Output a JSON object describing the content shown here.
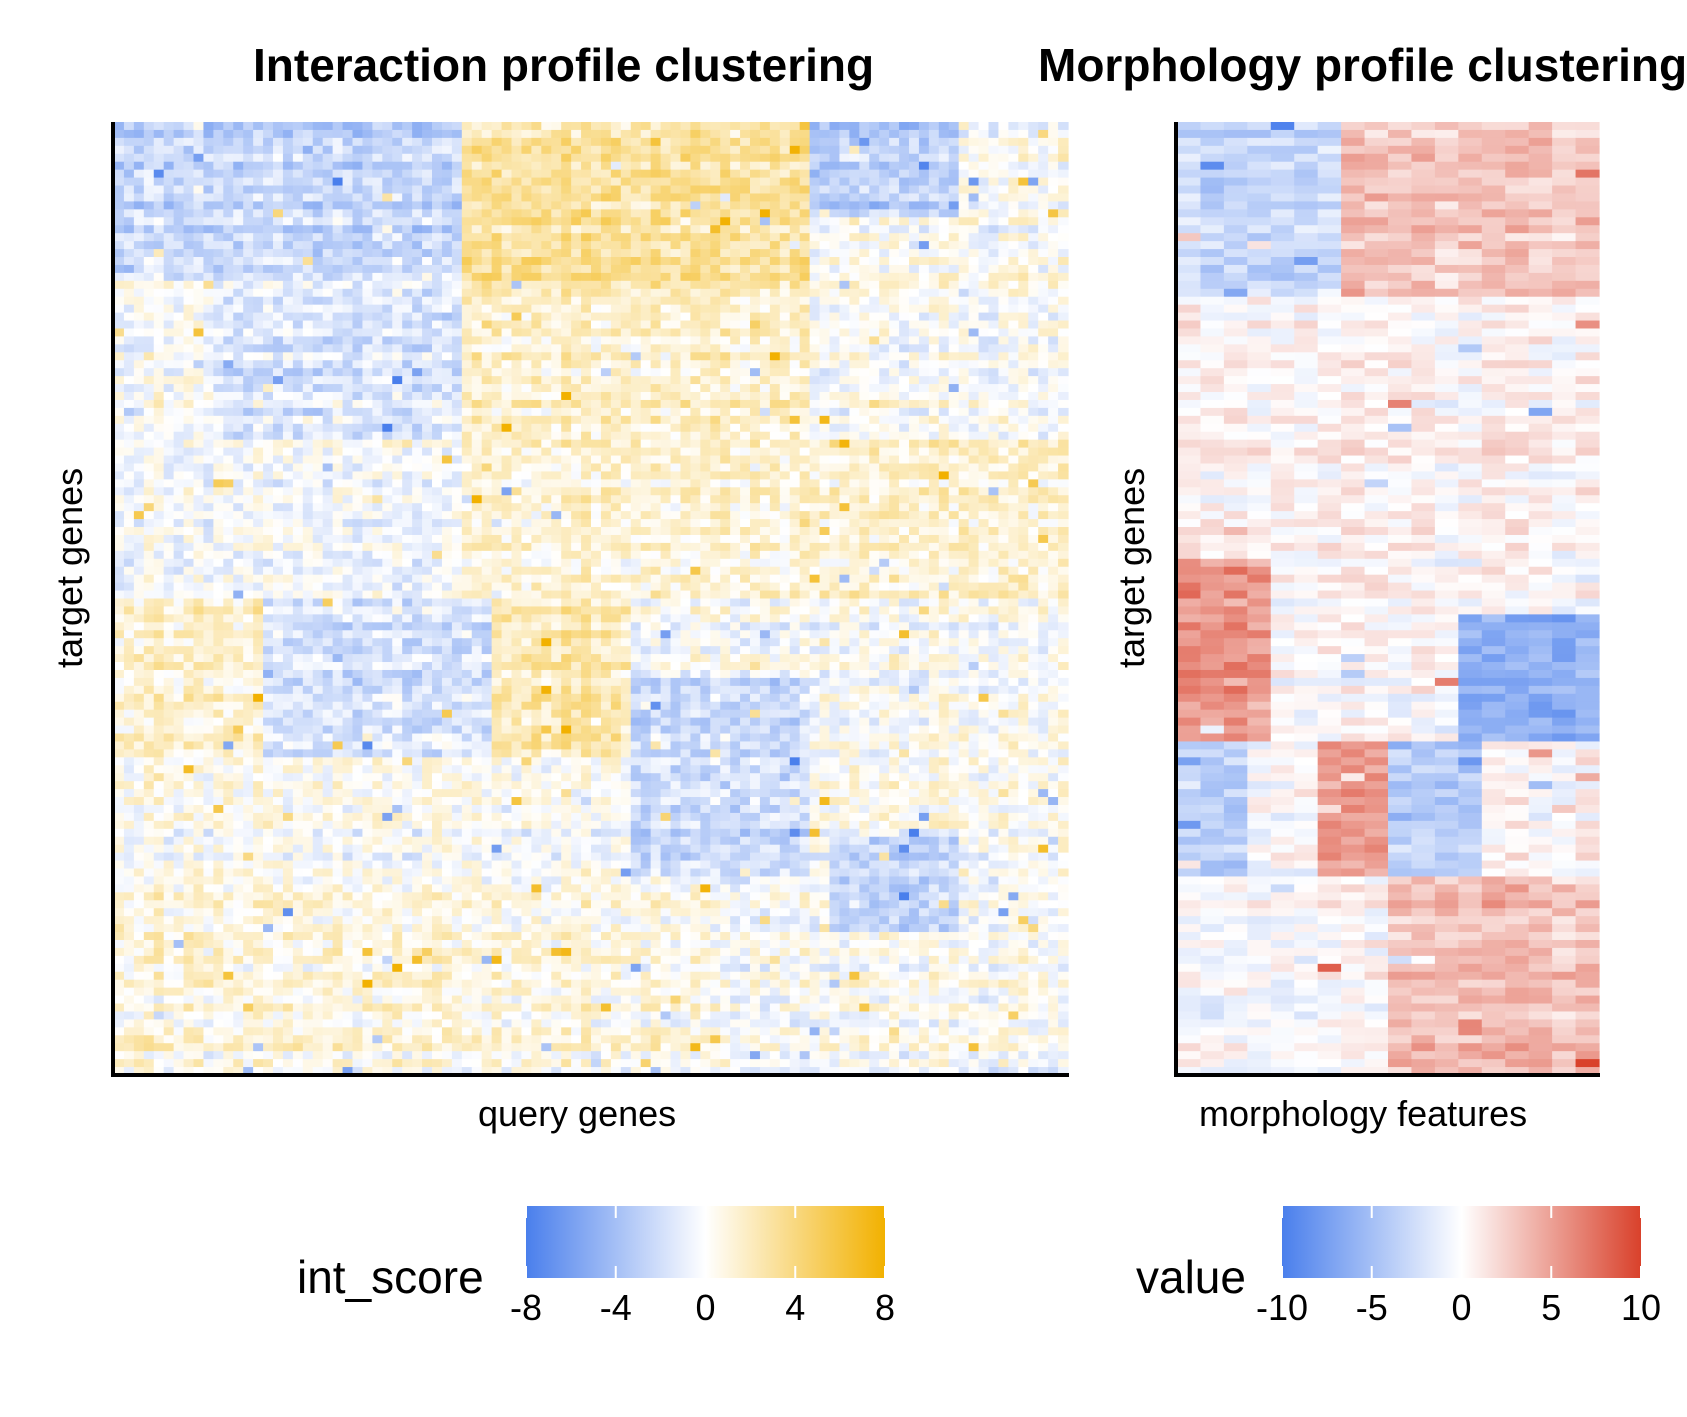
{
  "chart_data": [
    {
      "type": "heatmap",
      "title": "Interaction profile clustering",
      "xlabel": "query genes",
      "ylabel": "target genes",
      "n_cols": 96,
      "n_rows": 120,
      "legend": {
        "title": "int_score",
        "position": "bottom",
        "ticks": [
          "-8",
          "-4",
          "0",
          "4",
          "8"
        ],
        "range": [
          -8,
          8
        ],
        "colors": {
          "low": "#4a7fec",
          "mid": "#ffffff",
          "high": "#f2b100"
        }
      },
      "blocks": [
        {
          "rows": [
            0,
            20
          ],
          "cols": [
            0,
            35
          ],
          "mean": -2.5
        },
        {
          "rows": [
            0,
            20
          ],
          "cols": [
            35,
            70
          ],
          "mean": 3.2
        },
        {
          "rows": [
            0,
            12
          ],
          "cols": [
            70,
            85
          ],
          "mean": -2.8
        },
        {
          "rows": [
            20,
            40
          ],
          "cols": [
            10,
            35
          ],
          "mean": -1.5
        },
        {
          "rows": [
            20,
            40
          ],
          "cols": [
            35,
            70
          ],
          "mean": 1.8
        },
        {
          "rows": [
            40,
            60
          ],
          "cols": [
            0,
            35
          ],
          "mean": -0.6
        },
        {
          "rows": [
            40,
            60
          ],
          "cols": [
            35,
            96
          ],
          "mean": 1.2
        },
        {
          "rows": [
            60,
            80
          ],
          "cols": [
            0,
            15
          ],
          "mean": 1.2
        },
        {
          "rows": [
            60,
            80
          ],
          "cols": [
            15,
            38
          ],
          "mean": -1.8
        },
        {
          "rows": [
            60,
            80
          ],
          "cols": [
            38,
            52
          ],
          "mean": 2.4
        },
        {
          "rows": [
            70,
            95
          ],
          "cols": [
            52,
            70
          ],
          "mean": -2.2
        },
        {
          "rows": [
            95,
            120
          ],
          "cols": [
            0,
            60
          ],
          "mean": 0.8
        },
        {
          "rows": [
            90,
            102
          ],
          "cols": [
            72,
            85
          ],
          "mean": -2.6
        }
      ]
    },
    {
      "type": "heatmap",
      "title": "Morphology profile clustering",
      "xlabel": "morphology features",
      "ylabel": "target genes",
      "n_cols": 18,
      "n_rows": 120,
      "legend": {
        "title": "value",
        "position": "bottom",
        "ticks": [
          "-10",
          "-5",
          "0",
          "5",
          "10"
        ],
        "range": [
          -10,
          10
        ],
        "colors": {
          "low": "#4a7fec",
          "mid": "#ffffff",
          "high": "#d9412b"
        }
      },
      "blocks": [
        {
          "rows": [
            0,
            22
          ],
          "cols": [
            0,
            7
          ],
          "mean": -3.0
        },
        {
          "rows": [
            0,
            22
          ],
          "cols": [
            7,
            18
          ],
          "mean": 3.0
        },
        {
          "rows": [
            22,
            55
          ],
          "cols": [
            0,
            18
          ],
          "mean": 0.5
        },
        {
          "rows": [
            55,
            78
          ],
          "cols": [
            0,
            4
          ],
          "mean": 5.5
        },
        {
          "rows": [
            62,
            78
          ],
          "cols": [
            12,
            18
          ],
          "mean": -6.5
        },
        {
          "rows": [
            78,
            95
          ],
          "cols": [
            0,
            3
          ],
          "mean": -4.0
        },
        {
          "rows": [
            78,
            95
          ],
          "cols": [
            6,
            9
          ],
          "mean": 5.0
        },
        {
          "rows": [
            78,
            95
          ],
          "cols": [
            9,
            13
          ],
          "mean": -4.0
        },
        {
          "rows": [
            95,
            120
          ],
          "cols": [
            9,
            18
          ],
          "mean": 3.5
        }
      ]
    }
  ]
}
